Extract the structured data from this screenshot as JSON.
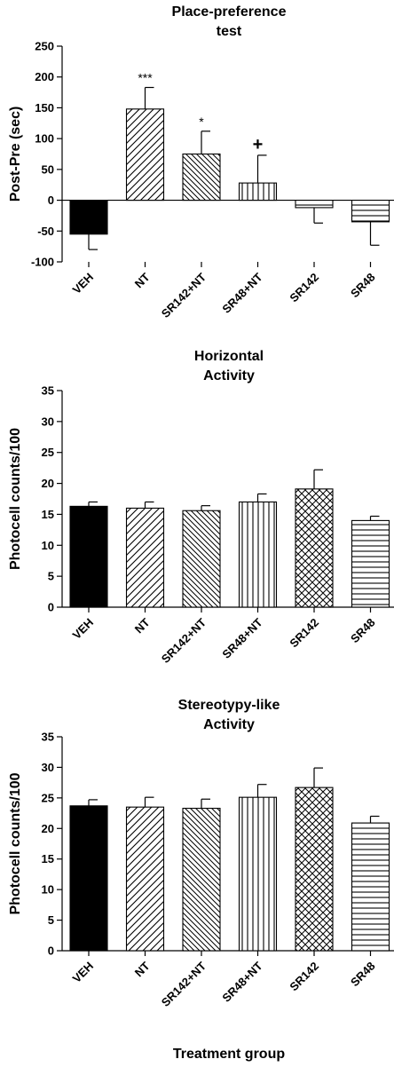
{
  "chart_data": [
    {
      "type": "bar",
      "title_lines": [
        "Place-preference",
        "test"
      ],
      "ylabel": "Post-Pre (sec)",
      "xlabel": "",
      "ylim": [
        -100,
        250
      ],
      "yticks": [
        -100,
        -50,
        0,
        50,
        100,
        150,
        200,
        250
      ],
      "categories": [
        "VEH",
        "NT",
        "SR142+NT",
        "SR48+NT",
        "SR142",
        "SR48"
      ],
      "values": [
        -55,
        148,
        75,
        28,
        -12,
        -35
      ],
      "errors": [
        25,
        35,
        37,
        45,
        25,
        38
      ],
      "significance": [
        "",
        "***",
        "*",
        "+",
        "",
        ""
      ],
      "patterns": [
        "solid",
        "diag-right",
        "diag-left",
        "vertical",
        "horizontal",
        "horizontal"
      ],
      "grid": false,
      "legend": "none"
    },
    {
      "type": "bar",
      "title_lines": [
        "Horizontal",
        "Activity"
      ],
      "ylabel": "Photocell counts/100",
      "xlabel": "",
      "ylim": [
        0,
        35
      ],
      "yticks": [
        0,
        5,
        10,
        15,
        20,
        25,
        30,
        35
      ],
      "categories": [
        "VEH",
        "NT",
        "SR142+NT",
        "SR48+NT",
        "SR142",
        "SR48"
      ],
      "values": [
        16.3,
        16.0,
        15.6,
        17.0,
        19.1,
        14.0
      ],
      "errors": [
        0.7,
        1.0,
        0.8,
        1.3,
        3.1,
        0.7
      ],
      "significance": [
        "",
        "",
        "",
        "",
        "",
        ""
      ],
      "patterns": [
        "solid",
        "diag-right",
        "diag-left",
        "vertical",
        "crosshatch",
        "horizontal"
      ],
      "grid": false,
      "legend": "none"
    },
    {
      "type": "bar",
      "title_lines": [
        "Stereotypy-like",
        "Activity"
      ],
      "ylabel": "Photocell counts/100",
      "xlabel": "",
      "ylim": [
        0,
        35
      ],
      "yticks": [
        0,
        5,
        10,
        15,
        20,
        25,
        30,
        35
      ],
      "categories": [
        "VEH",
        "NT",
        "SR142+NT",
        "SR48+NT",
        "SR142",
        "SR48"
      ],
      "values": [
        23.7,
        23.5,
        23.3,
        25.1,
        26.7,
        20.9
      ],
      "errors": [
        1.0,
        1.6,
        1.5,
        2.1,
        3.2,
        1.1
      ],
      "significance": [
        "",
        "",
        "",
        "",
        "",
        ""
      ],
      "patterns": [
        "solid",
        "diag-right",
        "diag-left",
        "vertical",
        "crosshatch",
        "horizontal"
      ],
      "grid": false,
      "legend": "none"
    }
  ],
  "figure": {
    "xlabel": "Treatment group"
  }
}
